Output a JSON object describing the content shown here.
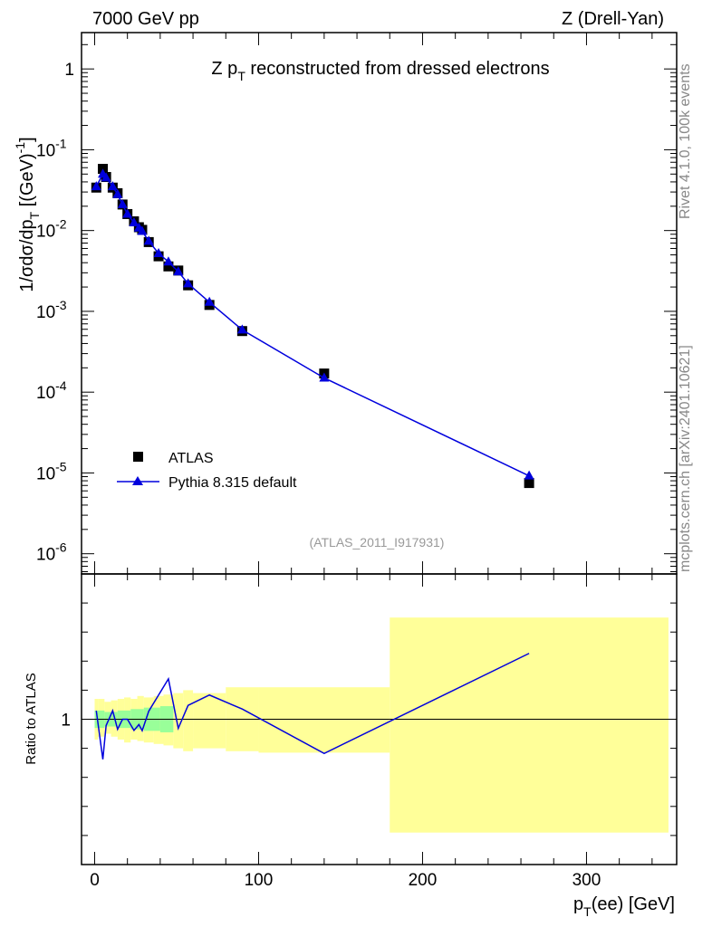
{
  "chart_data": {
    "type": "scatter",
    "header_left": "7000 GeV pp",
    "header_right": "Z (Drell-Yan)",
    "title_main": "Z p",
    "title_sub": "T",
    "title_rest": " reconstructed from dressed electrons",
    "ylabel": "1/σdσ/dp_T [(GeV)^-1]",
    "ylabel_parts": {
      "main": "1/σdσ/dp",
      "sub": "T",
      "unit": " [(GeV)",
      "sup": "-1",
      "end": "]"
    },
    "xlabel_parts": {
      "main": "p",
      "sub": "T",
      "rest": "(ee) [GeV]"
    },
    "ratio_ylabel": "Ratio to ATLAS",
    "side_top": "Rivet 4.1.0,  100k events",
    "side_bottom": "mcplots.cern.ch [arXiv:2401.10621]",
    "analysis_tag": "(ATLAS_2011_I917931)",
    "xlim": [
      -8,
      355
    ],
    "ylim_log": [
      -6.25,
      0.45
    ],
    "ratio_ylim": [
      0.5,
      1.5
    ],
    "xticks": [
      0,
      100,
      200,
      300
    ],
    "xtick_labels": [
      "0",
      "100",
      "200",
      "300"
    ],
    "ytick_labels": [
      {
        "exp": 0,
        "base": "1",
        "sup": ""
      },
      {
        "exp": -1,
        "base": "10",
        "sup": "-1"
      },
      {
        "exp": -2,
        "base": "10",
        "sup": "-2"
      },
      {
        "exp": -3,
        "base": "10",
        "sup": "-3"
      },
      {
        "exp": -4,
        "base": "10",
        "sup": "-4"
      },
      {
        "exp": -5,
        "base": "10",
        "sup": "-5"
      },
      {
        "exp": -6,
        "base": "10",
        "sup": "-6"
      }
    ],
    "ratio_ytick_label": "1",
    "series": [
      {
        "name": "ATLAS",
        "marker": "square",
        "color": "#000000",
        "x": [
          1,
          5,
          7,
          11,
          14,
          17,
          20,
          24,
          27,
          29,
          33,
          39,
          45,
          51,
          57,
          70,
          90,
          140,
          265
        ],
        "y": [
          0.034,
          0.058,
          0.046,
          0.034,
          0.029,
          0.021,
          0.016,
          0.013,
          0.011,
          0.0102,
          0.0072,
          0.0048,
          0.0036,
          0.0032,
          0.0021,
          0.0012,
          0.00057,
          0.00017,
          7.5e-06
        ]
      },
      {
        "name": "Pythia 8.315 default",
        "marker": "triangle",
        "color": "#0000dd",
        "x": [
          1,
          5,
          7,
          11,
          14,
          17,
          20,
          24,
          27,
          29,
          33,
          39,
          45,
          51,
          57,
          70,
          90,
          140,
          265
        ],
        "y": [
          0.035,
          0.05,
          0.045,
          0.035,
          0.028,
          0.021,
          0.016,
          0.0125,
          0.0108,
          0.0098,
          0.0074,
          0.0052,
          0.0041,
          0.0031,
          0.0022,
          0.0013,
          0.00059,
          0.00015,
          9.2e-06
        ]
      }
    ],
    "ratio_band_outer": {
      "color": "#ffff99",
      "bins": [
        {
          "x0": 0,
          "x1": 2,
          "lo": 0.93,
          "hi": 1.07
        },
        {
          "x0": 2,
          "x1": 6,
          "lo": 0.94,
          "hi": 1.07
        },
        {
          "x0": 6,
          "x1": 10,
          "lo": 0.95,
          "hi": 1.06
        },
        {
          "x0": 10,
          "x1": 14,
          "lo": 0.94,
          "hi": 1.065
        },
        {
          "x0": 14,
          "x1": 18,
          "lo": 0.93,
          "hi": 1.07
        },
        {
          "x0": 18,
          "x1": 22,
          "lo": 0.92,
          "hi": 1.075
        },
        {
          "x0": 22,
          "x1": 26,
          "lo": 0.93,
          "hi": 1.07
        },
        {
          "x0": 26,
          "x1": 30,
          "lo": 0.925,
          "hi": 1.08
        },
        {
          "x0": 30,
          "x1": 36,
          "lo": 0.92,
          "hi": 1.075
        },
        {
          "x0": 36,
          "x1": 42,
          "lo": 0.915,
          "hi": 1.08
        },
        {
          "x0": 42,
          "x1": 48,
          "lo": 0.91,
          "hi": 1.085
        },
        {
          "x0": 48,
          "x1": 54,
          "lo": 0.9,
          "hi": 1.09
        },
        {
          "x0": 54,
          "x1": 60,
          "lo": 0.89,
          "hi": 1.1
        },
        {
          "x0": 60,
          "x1": 80,
          "lo": 0.9,
          "hi": 1.09
        },
        {
          "x0": 80,
          "x1": 100,
          "lo": 0.89,
          "hi": 1.11
        },
        {
          "x0": 100,
          "x1": 180,
          "lo": 0.885,
          "hi": 1.11
        },
        {
          "x0": 180,
          "x1": 350,
          "lo": 0.61,
          "hi": 1.35
        }
      ]
    },
    "ratio_band_inner": {
      "color": "#99ff99",
      "bins": [
        {
          "x0": 0,
          "x1": 6,
          "lo": 0.97,
          "hi": 1.03
        },
        {
          "x0": 6,
          "x1": 14,
          "lo": 0.975,
          "hi": 1.025
        },
        {
          "x0": 14,
          "x1": 22,
          "lo": 0.97,
          "hi": 1.03
        },
        {
          "x0": 22,
          "x1": 30,
          "lo": 0.965,
          "hi": 1.035
        },
        {
          "x0": 30,
          "x1": 40,
          "lo": 0.96,
          "hi": 1.04
        },
        {
          "x0": 40,
          "x1": 48,
          "lo": 0.955,
          "hi": 1.045
        }
      ]
    }
  }
}
